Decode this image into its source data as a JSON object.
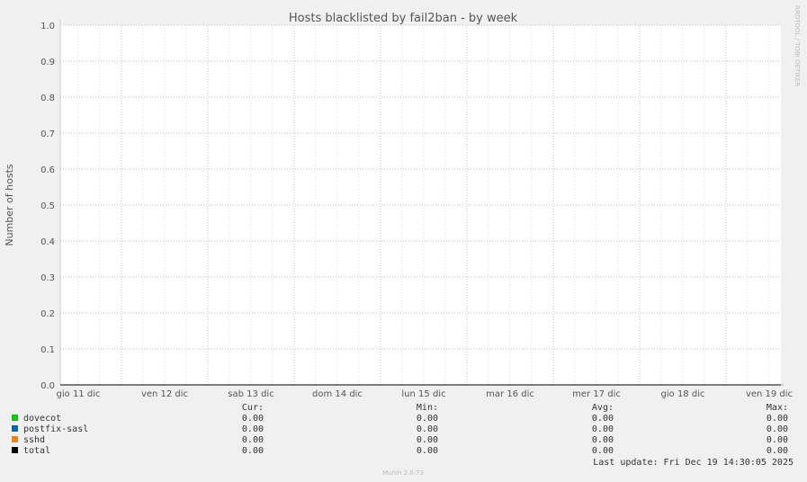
{
  "chart_data": {
    "type": "line",
    "title": "Hosts blacklisted by fail2ban - by week",
    "ylabel": "Number of hosts",
    "xlabel": "",
    "ylim": [
      0,
      1.0
    ],
    "yticks": [
      "0.0",
      "0.1",
      "0.2",
      "0.3",
      "0.4",
      "0.5",
      "0.6",
      "0.7",
      "0.8",
      "0.9",
      "1.0"
    ],
    "xticks": [
      "gio 11 dic",
      "ven 12 dic",
      "sab 13 dic",
      "dom 14 dic",
      "lun 15 dic",
      "mar 16 dic",
      "mer 17 dic",
      "gio 18 dic",
      "ven 19 dic"
    ],
    "grid": true,
    "series": [
      {
        "name": "dovecot",
        "color": "#00cc00",
        "cur": "0.00",
        "min": "0.00",
        "avg": "0.00",
        "max": "0.00"
      },
      {
        "name": "postfix-sasl",
        "color": "#0066b3",
        "cur": "0.00",
        "min": "0.00",
        "avg": "0.00",
        "max": "0.00"
      },
      {
        "name": "sshd",
        "color": "#ff8000",
        "cur": "0.00",
        "min": "0.00",
        "avg": "0.00",
        "max": "0.00"
      },
      {
        "name": "total",
        "color": "#000000",
        "cur": "0.00",
        "min": "0.00",
        "avg": "0.00",
        "max": "0.00"
      }
    ]
  },
  "legend_headers": {
    "cur": "Cur:",
    "min": "Min:",
    "avg": "Avg:",
    "max": "Max:"
  },
  "last_update": "Last update: Fri Dec 19 14:30:05 2025",
  "footer": "Munin 2.0.73",
  "watermark": "RRDTOOL / TOBI OETIKER"
}
